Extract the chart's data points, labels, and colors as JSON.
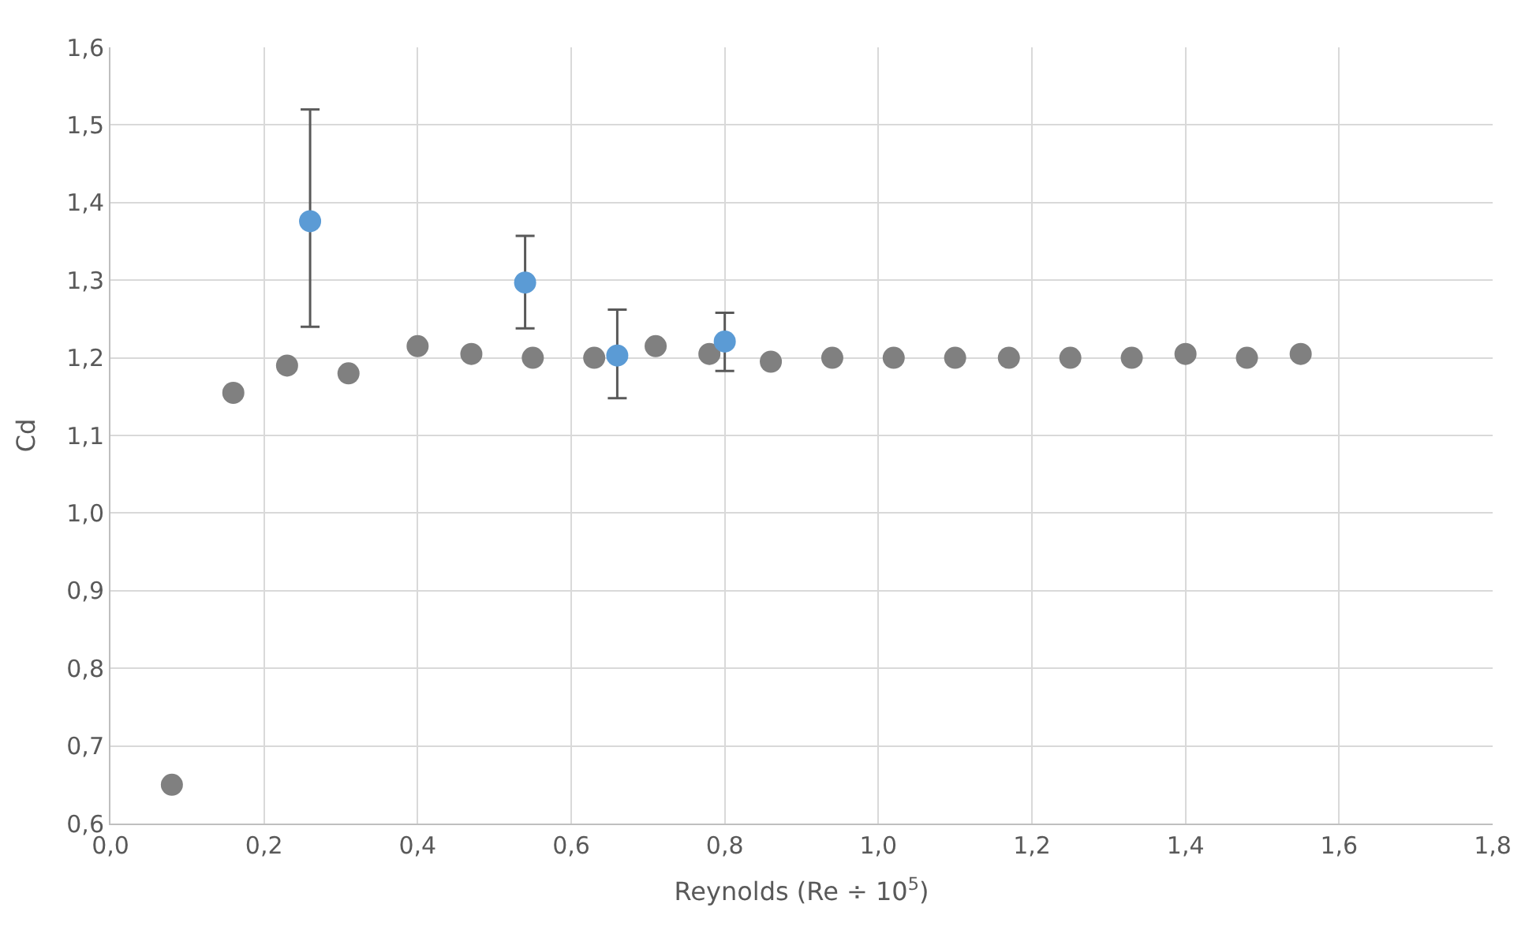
{
  "chart_data": {
    "type": "scatter",
    "xlabel": "Reynolds (Re ÷ 10$^{5}$)",
    "ylabel": "Cd",
    "xlim": [
      0,
      1.8
    ],
    "ylim": [
      0.6,
      1.6
    ],
    "xticks": [
      {
        "value": 0,
        "label": "0,0"
      },
      {
        "value": 0.2,
        "label": "0,2"
      },
      {
        "value": 0.4,
        "label": "0,4"
      },
      {
        "value": 0.6,
        "label": "0,6"
      },
      {
        "value": 0.8,
        "label": "0,8"
      },
      {
        "value": 1.0,
        "label": "1,0"
      },
      {
        "value": 1.2,
        "label": "1,2"
      },
      {
        "value": 1.4,
        "label": "1,4"
      },
      {
        "value": 1.6,
        "label": "1,6"
      },
      {
        "value": 1.8,
        "label": "1,8"
      }
    ],
    "yticks": [
      {
        "value": 0.6,
        "label": "0,6"
      },
      {
        "value": 0.7,
        "label": "0,7"
      },
      {
        "value": 0.8,
        "label": "0,8"
      },
      {
        "value": 0.9,
        "label": "0,9"
      },
      {
        "value": 1.0,
        "label": "1,0"
      },
      {
        "value": 1.1,
        "label": "1,1"
      },
      {
        "value": 1.2,
        "label": "1,2"
      },
      {
        "value": 1.3,
        "label": "1,3"
      },
      {
        "value": 1.4,
        "label": "1,4"
      },
      {
        "value": 1.5,
        "label": "1,5"
      },
      {
        "value": 1.6,
        "label": "1,6"
      }
    ],
    "grid": true,
    "marker": "circle",
    "series": [
      {
        "color": "#808080",
        "x": [
          0.08,
          0.16,
          0.23,
          0.31,
          0.4,
          0.47,
          0.55,
          0.63,
          0.71,
          0.78,
          0.86,
          0.94,
          1.02,
          1.1,
          1.17,
          1.25,
          1.33,
          1.4,
          1.48,
          1.55
        ],
        "values": [
          0.65,
          1.155,
          1.19,
          1.18,
          1.215,
          1.205,
          1.2,
          1.2,
          1.215,
          1.205,
          1.195,
          1.2,
          1.2,
          1.2,
          1.2,
          1.2,
          1.2,
          1.205,
          1.2,
          1.205
        ]
      },
      {
        "color": "#5b9bd5",
        "x": [
          0.26,
          0.54,
          0.66,
          0.8
        ],
        "values": [
          1.376,
          1.297,
          1.203,
          1.221
        ],
        "errors": [
          [
            1.24,
            1.52
          ],
          [
            1.238,
            1.357
          ],
          [
            1.148,
            1.262
          ],
          [
            1.183,
            1.258
          ]
        ]
      }
    ]
  }
}
